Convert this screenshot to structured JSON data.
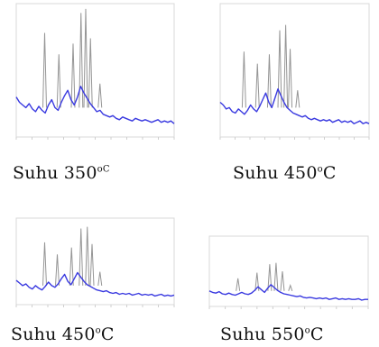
{
  "colors": {
    "spectrum": "#3a3ae0",
    "peaks": "#8a8a8a",
    "frame": "#d8d8d8"
  },
  "chart_data": [
    {
      "type": "line",
      "caption": {
        "prefix": "Suhu  350",
        "superscript": "oC",
        "suffix": ""
      },
      "series": [
        {
          "kind": "spectrum",
          "values": [
            0.3,
            0.26,
            0.24,
            0.22,
            0.25,
            0.21,
            0.19,
            0.23,
            0.2,
            0.18,
            0.24,
            0.28,
            0.22,
            0.2,
            0.26,
            0.31,
            0.35,
            0.28,
            0.24,
            0.3,
            0.38,
            0.33,
            0.29,
            0.25,
            0.22,
            0.19,
            0.2,
            0.17,
            0.16,
            0.15,
            0.16,
            0.14,
            0.13,
            0.15,
            0.14,
            0.13,
            0.12,
            0.14,
            0.13,
            0.12,
            0.13,
            0.12,
            0.11,
            0.12,
            0.13,
            0.11,
            0.12,
            0.11,
            0.12,
            0.1
          ]
        },
        {
          "kind": "peaks",
          "x": [
            0.18,
            0.27,
            0.36,
            0.41,
            0.44,
            0.47,
            0.53
          ],
          "y": [
            0.78,
            0.62,
            0.7,
            0.93,
            0.96,
            0.74,
            0.4
          ]
        }
      ]
    },
    {
      "type": "line",
      "caption": {
        "prefix": "Suhu 450",
        "superscript": "o",
        "suffix": "C"
      },
      "series": [
        {
          "kind": "spectrum",
          "values": [
            0.26,
            0.24,
            0.21,
            0.22,
            0.19,
            0.18,
            0.21,
            0.19,
            0.17,
            0.2,
            0.24,
            0.21,
            0.19,
            0.23,
            0.28,
            0.33,
            0.26,
            0.22,
            0.29,
            0.36,
            0.31,
            0.26,
            0.22,
            0.2,
            0.18,
            0.17,
            0.16,
            0.15,
            0.16,
            0.14,
            0.13,
            0.14,
            0.13,
            0.12,
            0.13,
            0.12,
            0.13,
            0.11,
            0.12,
            0.13,
            0.11,
            0.12,
            0.11,
            0.12,
            0.1,
            0.11,
            0.12,
            0.1,
            0.11,
            0.1
          ]
        },
        {
          "kind": "peaks",
          "x": [
            0.16,
            0.25,
            0.33,
            0.4,
            0.44,
            0.47,
            0.52
          ],
          "y": [
            0.64,
            0.55,
            0.62,
            0.8,
            0.84,
            0.66,
            0.35
          ]
        }
      ]
    },
    {
      "type": "line",
      "caption": {
        "prefix": "Suhu 450",
        "superscript": "o",
        "suffix": "C"
      },
      "series": [
        {
          "kind": "spectrum",
          "values": [
            0.28,
            0.25,
            0.22,
            0.24,
            0.2,
            0.18,
            0.22,
            0.19,
            0.17,
            0.21,
            0.26,
            0.22,
            0.2,
            0.24,
            0.3,
            0.35,
            0.27,
            0.23,
            0.3,
            0.37,
            0.32,
            0.27,
            0.23,
            0.21,
            0.19,
            0.17,
            0.16,
            0.15,
            0.16,
            0.14,
            0.13,
            0.14,
            0.12,
            0.13,
            0.12,
            0.13,
            0.11,
            0.12,
            0.13,
            0.11,
            0.12,
            0.11,
            0.12,
            0.1,
            0.11,
            0.12,
            0.1,
            0.11,
            0.1,
            0.11
          ]
        },
        {
          "kind": "peaks",
          "x": [
            0.18,
            0.26,
            0.35,
            0.41,
            0.45,
            0.48,
            0.53
          ],
          "y": [
            0.72,
            0.58,
            0.66,
            0.88,
            0.9,
            0.7,
            0.38
          ]
        }
      ]
    },
    {
      "type": "line",
      "caption": {
        "prefix": "Suhu 550",
        "superscript": "o",
        "suffix": "C"
      },
      "series": [
        {
          "kind": "spectrum",
          "values": [
            0.22,
            0.2,
            0.19,
            0.21,
            0.18,
            0.17,
            0.19,
            0.17,
            0.16,
            0.18,
            0.2,
            0.18,
            0.17,
            0.19,
            0.23,
            0.28,
            0.24,
            0.2,
            0.26,
            0.31,
            0.27,
            0.23,
            0.2,
            0.18,
            0.17,
            0.16,
            0.15,
            0.14,
            0.15,
            0.13,
            0.12,
            0.13,
            0.12,
            0.11,
            0.12,
            0.11,
            0.12,
            0.1,
            0.11,
            0.12,
            0.1,
            0.11,
            0.1,
            0.11,
            0.1,
            0.1,
            0.11,
            0.09,
            0.1,
            0.1
          ]
        },
        {
          "kind": "peaks",
          "x": [
            0.18,
            0.3,
            0.38,
            0.42,
            0.46,
            0.51
          ],
          "y": [
            0.4,
            0.48,
            0.6,
            0.62,
            0.5,
            0.3
          ]
        }
      ]
    }
  ]
}
